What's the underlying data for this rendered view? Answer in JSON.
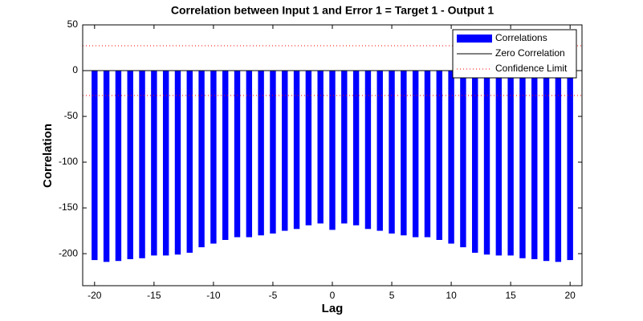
{
  "chart_data": {
    "type": "bar",
    "title": "Correlation between Input 1 and Error 1 = Target 1 - Output 1",
    "x_label": "Lag",
    "y_label": "Correlation",
    "x": [
      -20,
      -19,
      -18,
      -17,
      -16,
      -15,
      -14,
      -13,
      -12,
      -11,
      -10,
      -9,
      -8,
      -7,
      -6,
      -5,
      -4,
      -3,
      -2,
      -1,
      0,
      1,
      2,
      3,
      4,
      5,
      6,
      7,
      8,
      9,
      10,
      11,
      12,
      13,
      14,
      15,
      16,
      17,
      18,
      19,
      20
    ],
    "series": [
      {
        "name": "Correlations",
        "color": "#0000ff",
        "values": [
          -207,
          -209,
          -208,
          -206,
          -205,
          -202,
          -202,
          -201,
          -199,
          -193,
          -189,
          -185,
          -182,
          -182,
          -180,
          -178,
          -175,
          -173,
          -169,
          -167,
          -174,
          -167,
          -169,
          -173,
          -175,
          -178,
          -180,
          -182,
          -182,
          -185,
          -189,
          -193,
          -199,
          -201,
          -202,
          -202,
          -205,
          -206,
          -208,
          -209,
          -207
        ]
      }
    ],
    "zero_line": {
      "name": "Zero Correlation",
      "value": 0,
      "color": "#000000"
    },
    "confidence_limit": {
      "name": "Confidence Limit",
      "values": [
        27.2,
        -27.2
      ],
      "color": "#ff0000"
    },
    "xlim": [
      -21,
      21
    ],
    "ylim": [
      -235,
      50
    ],
    "xticks": [
      -20,
      -15,
      -10,
      -5,
      0,
      5,
      10,
      15,
      20
    ],
    "yticks": [
      -200,
      -150,
      -100,
      -50,
      0,
      50
    ],
    "legend": "upper right"
  }
}
